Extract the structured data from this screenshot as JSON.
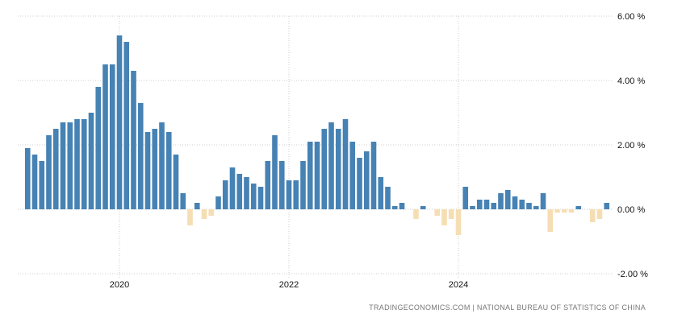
{
  "chart_data": {
    "type": "bar",
    "title": "",
    "xlabel": "",
    "ylabel": "",
    "start_month": "2018-12",
    "end_month": "2025-10",
    "values": [
      1.9,
      1.7,
      1.5,
      2.3,
      2.5,
      2.7,
      2.7,
      2.8,
      2.8,
      3.0,
      3.8,
      4.5,
      4.5,
      5.4,
      5.2,
      4.3,
      3.3,
      2.4,
      2.5,
      2.7,
      2.4,
      1.7,
      0.5,
      -0.5,
      0.2,
      -0.3,
      -0.2,
      0.4,
      0.9,
      1.3,
      1.1,
      1.0,
      0.8,
      0.7,
      1.5,
      2.3,
      1.5,
      0.9,
      0.9,
      1.5,
      2.1,
      2.1,
      2.5,
      2.7,
      2.5,
      2.8,
      2.1,
      1.6,
      1.8,
      2.1,
      1.0,
      0.7,
      0.1,
      0.2,
      0.0,
      -0.3,
      0.1,
      0.0,
      -0.2,
      -0.5,
      -0.3,
      -0.8,
      0.7,
      0.1,
      0.3,
      0.3,
      0.2,
      0.5,
      0.6,
      0.4,
      0.3,
      0.2,
      0.1,
      0.5,
      -0.7,
      -0.1,
      -0.1,
      -0.1,
      0.1,
      0.0,
      -0.4,
      -0.3,
      0.2
    ],
    "ylim": [
      -2,
      6
    ],
    "y_ticks": [
      {
        "value": 6,
        "label": "6.00 %"
      },
      {
        "value": 4,
        "label": "4.00 %"
      },
      {
        "value": 2,
        "label": "2.00 %"
      },
      {
        "value": 0,
        "label": "0.00 %"
      },
      {
        "value": -2,
        "label": "-2.00 %"
      }
    ],
    "x_ticks": [
      {
        "month": "2020-01",
        "label": "2020"
      },
      {
        "month": "2022-01",
        "label": "2022"
      },
      {
        "month": "2024-01",
        "label": "2024"
      }
    ],
    "grid": true,
    "colors": {
      "positive": "#4682b4",
      "negative": "#f5deb3",
      "grid": "#cccccc"
    }
  },
  "source": "TRADINGECONOMICS.COM  |  NATIONAL BUREAU OF STATISTICS OF CHINA"
}
